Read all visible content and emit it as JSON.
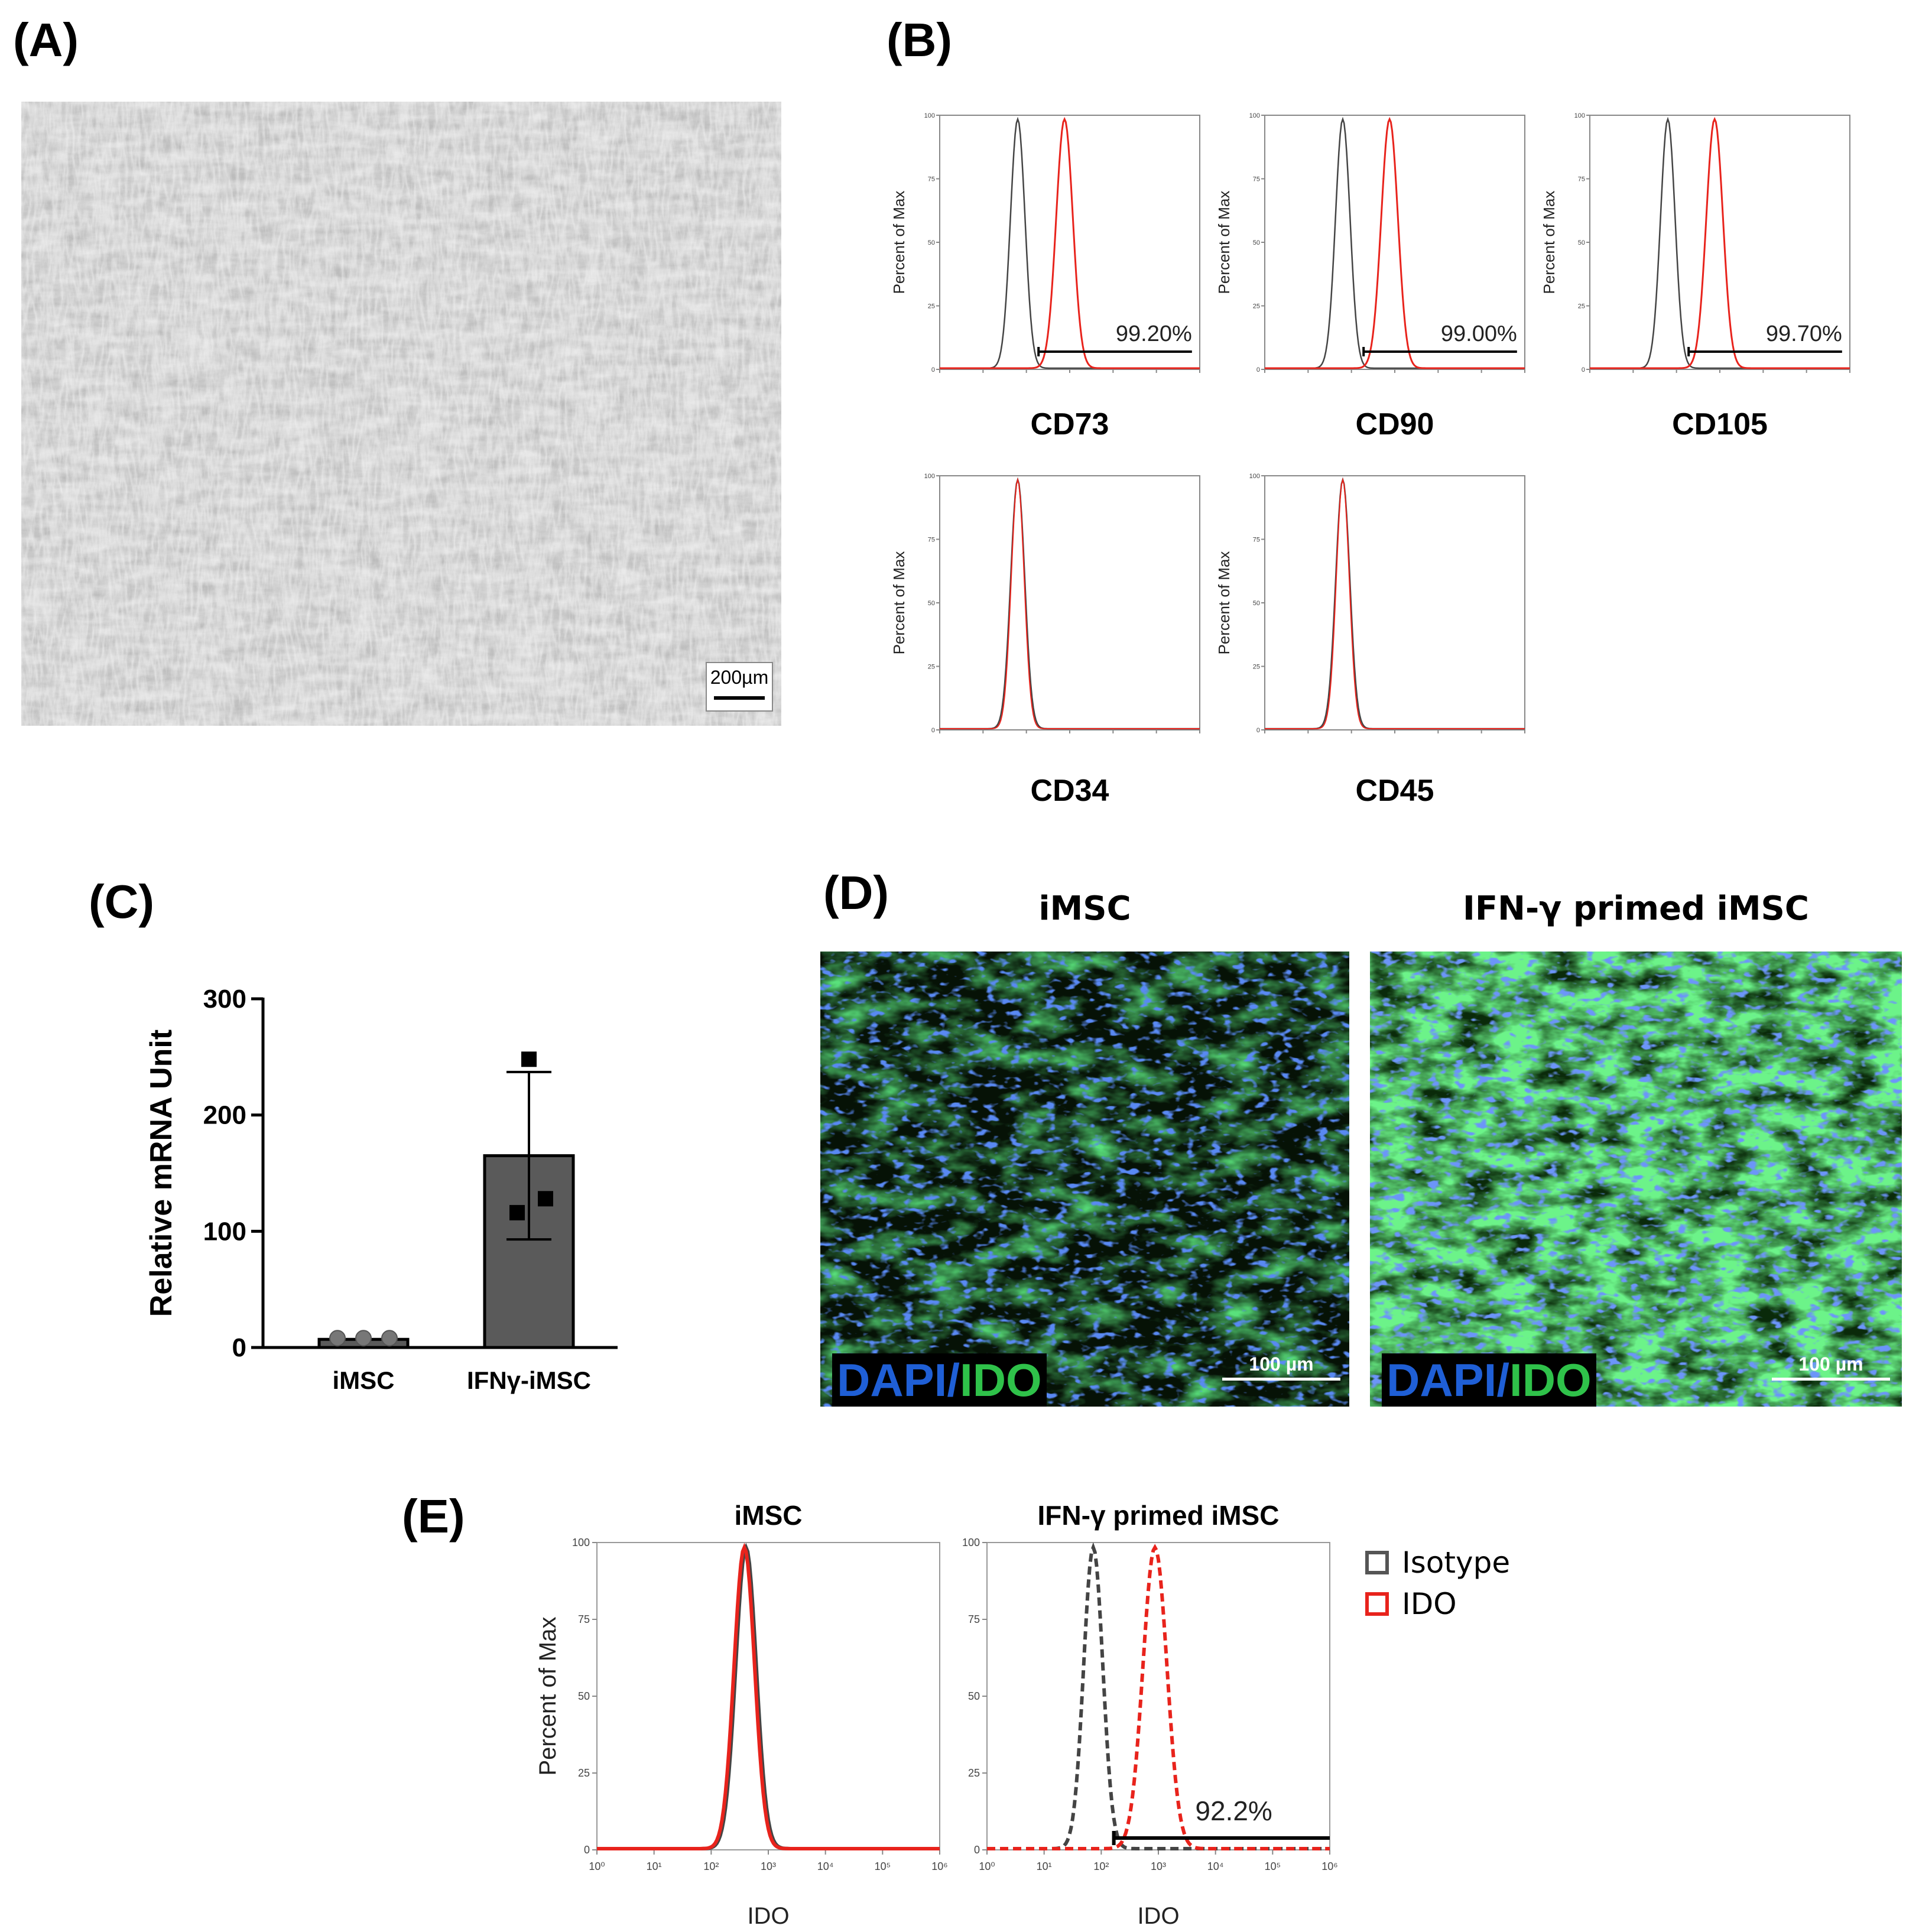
{
  "panels": {
    "A": {
      "letter": "(A)",
      "scale_bar_label": "200µm"
    },
    "B": {
      "letter": "(B)",
      "y_axis_label": "Percent of Max",
      "y_ticks": [
        "100",
        "75",
        "50",
        "25",
        "0"
      ],
      "histograms": [
        {
          "marker": "CD73",
          "gate_label": "99.20%",
          "positive": true
        },
        {
          "marker": "CD90",
          "gate_label": "99.00%",
          "positive": true
        },
        {
          "marker": "CD105",
          "gate_label": "99.70%",
          "positive": true
        },
        {
          "marker": "CD34",
          "gate_label": "",
          "positive": false
        },
        {
          "marker": "CD45",
          "gate_label": "",
          "positive": false
        }
      ]
    },
    "C": {
      "letter": "(C)"
    },
    "D": {
      "letter": "(D)",
      "images": [
        {
          "title": "iMSC",
          "stain_dapi": "DAPI",
          "stain_sep": "/",
          "stain_ido": "IDO",
          "scale_label": "100 µm"
        },
        {
          "title": "IFN-γ primed iMSC",
          "stain_dapi": "DAPI",
          "stain_sep": "/",
          "stain_ido": "IDO",
          "scale_label": "100 µm"
        }
      ]
    },
    "E": {
      "letter": "(E)",
      "y_axis_label": "Percent of Max",
      "x_axis_label": "IDO",
      "y_ticks": [
        "100",
        "75",
        "50",
        "25",
        "0"
      ],
      "x_ticks": [
        "10⁰",
        "10¹",
        "10²",
        "10³",
        "10⁴",
        "10⁵",
        "10⁶"
      ],
      "plots": [
        {
          "title": "iMSC",
          "gate_label": ""
        },
        {
          "title": "IFN-γ primed iMSC",
          "gate_label": "92.2%"
        }
      ],
      "legend": [
        {
          "label": "Isotype",
          "color": "#555555"
        },
        {
          "label": "IDO",
          "color": "#e8231c"
        }
      ]
    }
  },
  "colors": {
    "isotype": "#444444",
    "positive": "#e8231c",
    "bar": "#5a5a5a",
    "dapi": "#1f5fd6",
    "ido": "#2fc24a"
  },
  "chart_data": {
    "type": "bar",
    "categories": [
      "iMSC",
      "IFNγ-iMSC"
    ],
    "values": [
      7,
      165
    ],
    "error": [
      1,
      72
    ],
    "points": [
      [
        8,
        8,
        8
      ],
      [
        248,
        128,
        116
      ]
    ],
    "xlabel": "",
    "ylabel": "Relative mRNA Unit",
    "ylim": [
      0,
      300
    ],
    "yticks": [
      0,
      100,
      200,
      300
    ],
    "grid": false
  }
}
